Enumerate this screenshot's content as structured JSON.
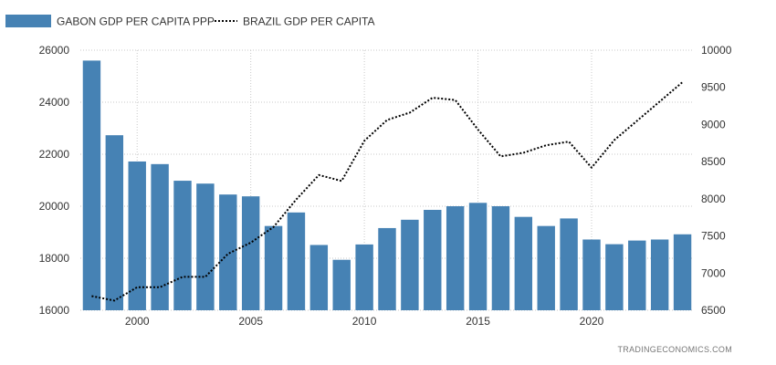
{
  "chart_data": {
    "type": "bar+line",
    "title": "",
    "legend": {
      "placement": "top-left",
      "entries": [
        {
          "name": "GABON GDP PER CAPITA PPP",
          "style": "bar",
          "color": "#4682b4"
        },
        {
          "name": "BRAZIL GDP PER CAPITA",
          "style": "dotted-line",
          "color": "#000000"
        }
      ]
    },
    "x": [
      1998,
      1999,
      2000,
      2001,
      2002,
      2003,
      2004,
      2005,
      2006,
      2007,
      2008,
      2009,
      2010,
      2011,
      2012,
      2013,
      2014,
      2015,
      2016,
      2017,
      2018,
      2019,
      2020,
      2021,
      2022,
      2023,
      2024
    ],
    "xlim": [
      1997.5,
      2024.5
    ],
    "x_ticks": [
      2000,
      2005,
      2010,
      2015,
      2020
    ],
    "x_tick_labels": [
      "2000",
      "2005",
      "2010",
      "2015",
      "2020"
    ],
    "series": [
      {
        "name": "GABON GDP PER CAPITA PPP",
        "axis": "left",
        "type": "bar",
        "values": [
          25600,
          22730,
          21720,
          21620,
          20980,
          20870,
          20450,
          20380,
          19240,
          19760,
          18510,
          17940,
          18530,
          19160,
          19480,
          19860,
          20000,
          20130,
          20000,
          19590,
          19240,
          19530,
          18720,
          18540,
          18680,
          18720,
          18920
        ]
      },
      {
        "name": "BRAZIL GDP PER CAPITA",
        "axis": "right",
        "type": "line",
        "values": [
          6690,
          6630,
          6810,
          6810,
          6950,
          6950,
          7260,
          7410,
          7620,
          7990,
          8320,
          8240,
          8780,
          9060,
          9160,
          9360,
          9330,
          8930,
          8570,
          8620,
          8720,
          8770,
          8420,
          8790,
          9050,
          9310,
          9570
        ]
      }
    ],
    "left_axis": {
      "ylim": [
        16000,
        26000
      ],
      "ticks": [
        16000,
        18000,
        20000,
        22000,
        24000,
        26000
      ],
      "tick_labels": [
        "16000",
        "18000",
        "20000",
        "22000",
        "24000",
        "26000"
      ]
    },
    "right_axis": {
      "ylim": [
        6500,
        10000
      ],
      "ticks": [
        6500,
        7000,
        7500,
        8000,
        8500,
        9000,
        9500,
        10000
      ],
      "tick_labels": [
        "6500",
        "7000",
        "7500",
        "8000",
        "8500",
        "9000",
        "9500",
        "10000"
      ]
    },
    "grid": true,
    "bar_color": "#4682b4",
    "line_color": "#000000",
    "source": "TRADINGECONOMICS.COM"
  }
}
